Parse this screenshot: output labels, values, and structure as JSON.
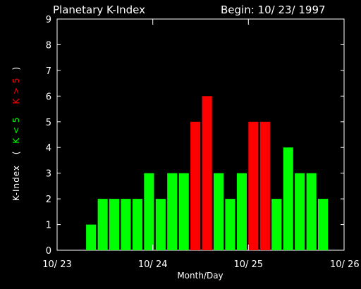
{
  "header": {
    "title": "Planetary K-Index",
    "begin": "Begin: 10/ 23/ 1997"
  },
  "chart_data": {
    "type": "bar",
    "title": "Planetary K-Index",
    "xlabel": "Month/Day",
    "ylabel_prefix": "K-Index",
    "legend": [
      {
        "text": "K < 5",
        "color": "#00ff00"
      },
      {
        "text": "K > 5",
        "color": "#ff0000"
      }
    ],
    "ylim": [
      0,
      9
    ],
    "y_ticks": [
      "0",
      "1",
      "2",
      "3",
      "4",
      "5",
      "6",
      "7",
      "8",
      "9"
    ],
    "x_tick_labels": [
      "10/ 23",
      "10/ 24",
      "10/ 25",
      "10/ 26"
    ],
    "interval_hours": 3,
    "values": [
      0,
      0,
      1,
      2,
      2,
      2,
      2,
      3,
      2,
      3,
      3,
      5,
      6,
      3,
      2,
      3,
      5,
      5,
      2,
      4,
      3,
      3,
      2,
      0
    ],
    "threshold": 5,
    "colors": {
      "low": "#00ff00",
      "high": "#ff0000",
      "axes": "#ffffff",
      "background": "#000000"
    }
  }
}
